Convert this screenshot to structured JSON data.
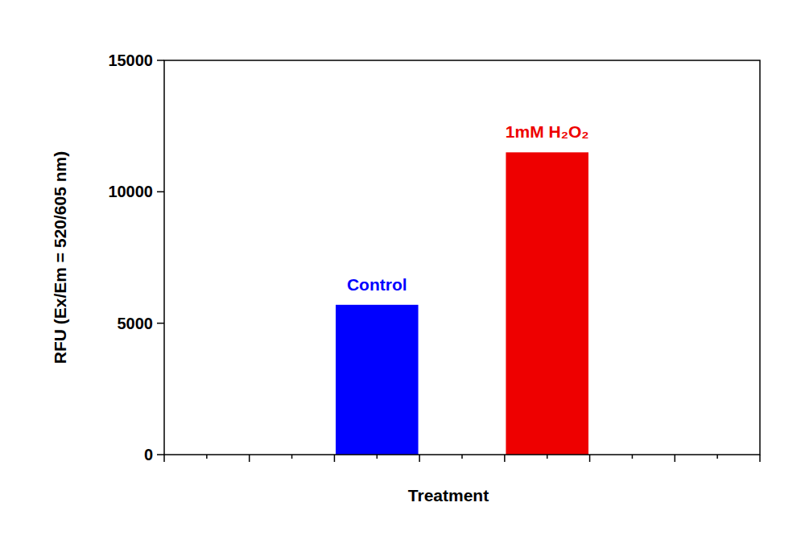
{
  "chart_data": {
    "type": "bar",
    "x_label": "Treatment",
    "y_label": "RFU (Ex/Em = 520/605 nm)",
    "categories": [
      "Control",
      "1mM H₂O₂"
    ],
    "values": [
      5700,
      11500
    ],
    "colors": [
      "#0000ff",
      "#ee0000"
    ],
    "ylim": [
      0,
      15000
    ],
    "yticks": [
      0,
      5000,
      10000,
      15000
    ],
    "grid": false,
    "tick_labels": "y"
  }
}
